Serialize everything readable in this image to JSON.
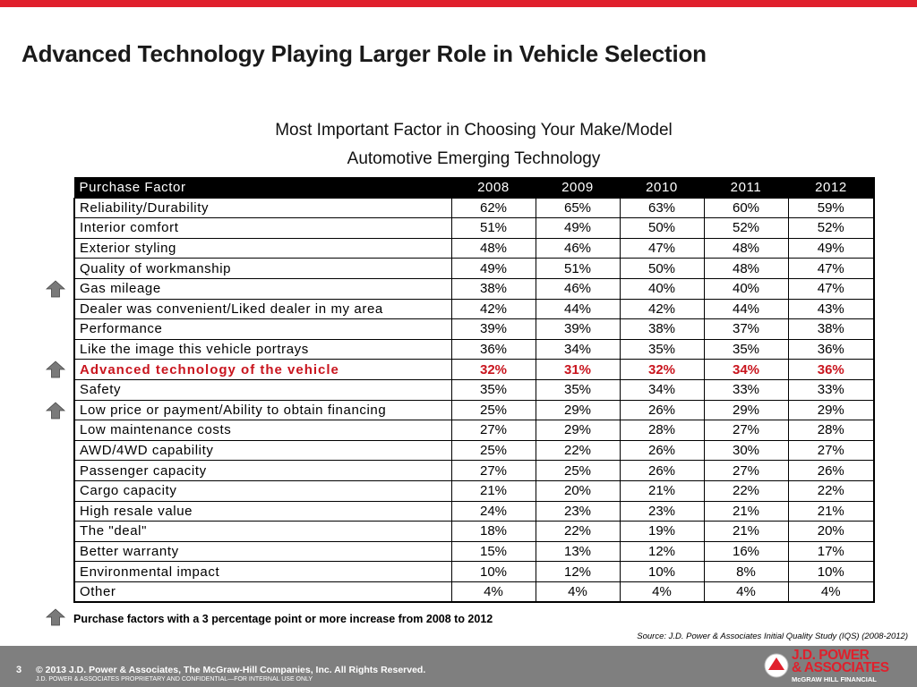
{
  "colors": {
    "accent": "#e0202c",
    "highlight_text": "#c9151e",
    "footer": "#7f7f7f",
    "arrow": "#7a7a7a"
  },
  "header": {
    "title": "Advanced Technology Playing Larger Role in Vehicle Selection"
  },
  "subtitle": {
    "line1": "Most Important Factor in Choosing Your Make/Model",
    "line2": "Automotive Emerging Technology"
  },
  "table": {
    "column_header": "Purchase Factor",
    "years": [
      "2008",
      "2009",
      "2010",
      "2011",
      "2012"
    ],
    "rows": [
      {
        "factor": "Reliability/Durability",
        "values": [
          "62%",
          "65%",
          "63%",
          "60%",
          "59%"
        ],
        "increase": false,
        "highlight": false
      },
      {
        "factor": "Interior comfort",
        "values": [
          "51%",
          "49%",
          "50%",
          "52%",
          "52%"
        ],
        "increase": false,
        "highlight": false
      },
      {
        "factor": "Exterior styling",
        "values": [
          "48%",
          "46%",
          "47%",
          "48%",
          "49%"
        ],
        "increase": false,
        "highlight": false
      },
      {
        "factor": "Quality of workmanship",
        "values": [
          "49%",
          "51%",
          "50%",
          "48%",
          "47%"
        ],
        "increase": false,
        "highlight": false
      },
      {
        "factor": "Gas mileage",
        "values": [
          "38%",
          "46%",
          "40%",
          "40%",
          "47%"
        ],
        "increase": true,
        "highlight": false
      },
      {
        "factor": "Dealer was convenient/Liked dealer in my area",
        "values": [
          "42%",
          "44%",
          "42%",
          "44%",
          "43%"
        ],
        "increase": false,
        "highlight": false
      },
      {
        "factor": "Performance",
        "values": [
          "39%",
          "39%",
          "38%",
          "37%",
          "38%"
        ],
        "increase": false,
        "highlight": false
      },
      {
        "factor": "Like the image this vehicle portrays",
        "values": [
          "36%",
          "34%",
          "35%",
          "35%",
          "36%"
        ],
        "increase": false,
        "highlight": false
      },
      {
        "factor": "Advanced technology of the vehicle",
        "values": [
          "32%",
          "31%",
          "32%",
          "34%",
          "36%"
        ],
        "increase": true,
        "highlight": true
      },
      {
        "factor": "Safety",
        "values": [
          "35%",
          "35%",
          "34%",
          "33%",
          "33%"
        ],
        "increase": false,
        "highlight": false
      },
      {
        "factor": "Low price or payment/Ability to obtain financing",
        "values": [
          "25%",
          "29%",
          "26%",
          "29%",
          "29%"
        ],
        "increase": true,
        "highlight": false
      },
      {
        "factor": "Low maintenance costs",
        "values": [
          "27%",
          "29%",
          "28%",
          "27%",
          "28%"
        ],
        "increase": false,
        "highlight": false
      },
      {
        "factor": "AWD/4WD capability",
        "values": [
          "25%",
          "22%",
          "26%",
          "30%",
          "27%"
        ],
        "increase": false,
        "highlight": false
      },
      {
        "factor": "Passenger capacity",
        "values": [
          "27%",
          "25%",
          "26%",
          "27%",
          "26%"
        ],
        "increase": false,
        "highlight": false
      },
      {
        "factor": "Cargo capacity",
        "values": [
          "21%",
          "20%",
          "21%",
          "22%",
          "22%"
        ],
        "increase": false,
        "highlight": false
      },
      {
        "factor": "High resale value",
        "values": [
          "24%",
          "23%",
          "23%",
          "21%",
          "21%"
        ],
        "increase": false,
        "highlight": false
      },
      {
        "factor": "The \"deal\"",
        "values": [
          "18%",
          "22%",
          "19%",
          "21%",
          "20%"
        ],
        "increase": false,
        "highlight": false
      },
      {
        "factor": "Better warranty",
        "values": [
          "15%",
          "13%",
          "12%",
          "16%",
          "17%"
        ],
        "increase": false,
        "highlight": false
      },
      {
        "factor": "Environmental impact",
        "values": [
          "10%",
          "12%",
          "10%",
          "8%",
          "10%"
        ],
        "increase": false,
        "highlight": false
      },
      {
        "factor": "Other",
        "values": [
          "4%",
          "4%",
          "4%",
          "4%",
          "4%"
        ],
        "increase": false,
        "highlight": false
      }
    ]
  },
  "legend": {
    "icon": "up-arrow-icon",
    "text": "Purchase factors with a 3 percentage point or more increase from 2008 to 2012"
  },
  "source": "Source: J.D. Power & Associates Initial Quality Study (IQS) (2008-2012)",
  "footer": {
    "page_number": "3",
    "copyright": "© 2013  J.D. Power & Associates, The McGraw-Hill Companies, Inc. All Rights Reserved.",
    "confidential": "J.D. POWER & ASSOCIATES PROPRIETARY AND CONFIDENTIAL—FOR INTERNAL USE ONLY",
    "logo_line1": "J.D. POWER",
    "logo_line2": "& ASSOCIATES",
    "logo_sub": "McGRAW HILL FINANCIAL"
  }
}
